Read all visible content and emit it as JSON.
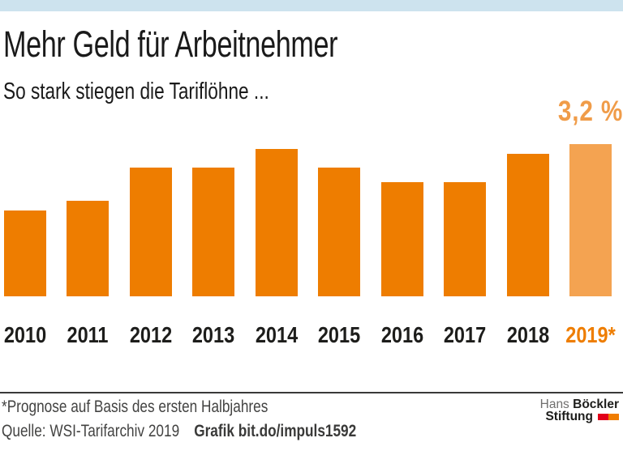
{
  "page": {
    "topbar_color": "#cde3ee",
    "background": "#ffffff"
  },
  "header": {
    "title": "Mehr Geld für Arbeitnehmer",
    "subtitle": "So stark stiegen die Tariflöhne ..."
  },
  "chart_data": {
    "type": "bar",
    "title": "Mehr Geld für Arbeitnehmer",
    "subtitle": "So stark stiegen die Tariflöhne ...",
    "categories": [
      "2010",
      "2011",
      "2012",
      "2013",
      "2014",
      "2015",
      "2016",
      "2017",
      "2018",
      "2019*"
    ],
    "values": [
      1.8,
      2.0,
      2.7,
      2.7,
      3.1,
      2.7,
      2.4,
      2.4,
      3.0,
      3.2
    ],
    "unit": "%",
    "xlabel": "",
    "ylabel": "",
    "ylim": [
      0,
      3.2
    ],
    "grid": false,
    "legend": false,
    "bar_color": "#ee7d00",
    "highlight_index": 9,
    "highlight_bar_color": "#f4a351",
    "highlight_label_color": "#ee7d00",
    "annotation": {
      "text": "3,2 %",
      "bar_index": 9,
      "color": "#f09c49"
    }
  },
  "footer": {
    "note": "*Prognose auf Basis des ersten Halbjahres",
    "source": "Quelle: WSI-Tarifarchiv 2019",
    "credit": "Grafik bit.do/impuls1592",
    "logo": {
      "line1_regular": "Hans",
      "line1_bold": "Böckler",
      "line2_bold": "Stiftung",
      "square_colors": [
        "#e2001a",
        "#f07d00"
      ]
    }
  }
}
